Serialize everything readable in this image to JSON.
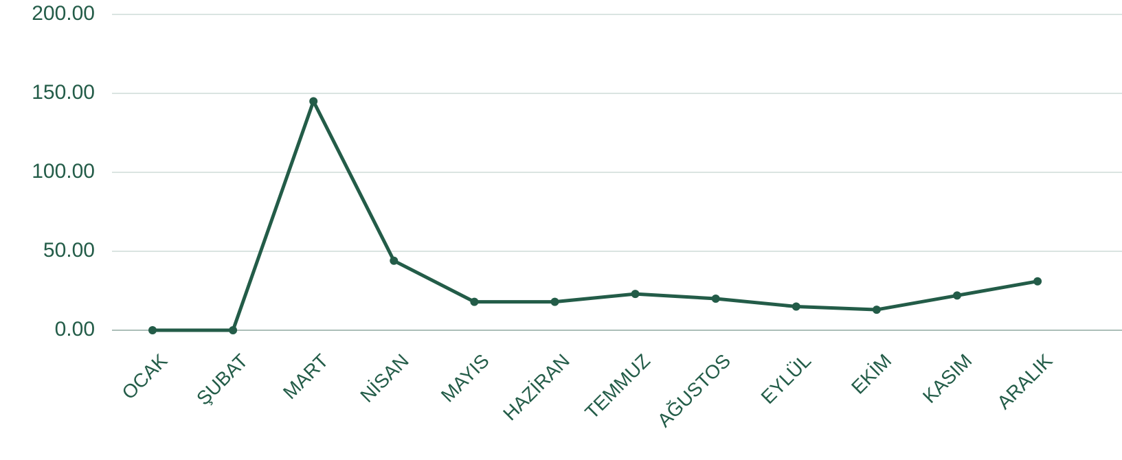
{
  "chart_data": {
    "type": "line",
    "categories": [
      "OCAK",
      "ŞUBAT",
      "MART",
      "NİSAN",
      "MAYIS",
      "HAZİRAN",
      "TEMMUZ",
      "AĞUSTOS",
      "EYLÜL",
      "EKİM",
      "KASIM",
      "ARALIK"
    ],
    "series": [
      {
        "name": "",
        "color": "#235c48",
        "values": [
          0,
          0,
          145,
          44,
          18,
          18,
          23,
          20,
          15,
          13,
          22,
          31
        ]
      }
    ],
    "ylim": [
      0,
      200
    ],
    "yticks": [
      {
        "value": 0,
        "label": "0.00"
      },
      {
        "value": 50,
        "label": "50.00"
      },
      {
        "value": 100,
        "label": "100.00"
      },
      {
        "value": 150,
        "label": "150.00"
      },
      {
        "value": 200,
        "label": "200.00"
      }
    ],
    "grid": true
  }
}
